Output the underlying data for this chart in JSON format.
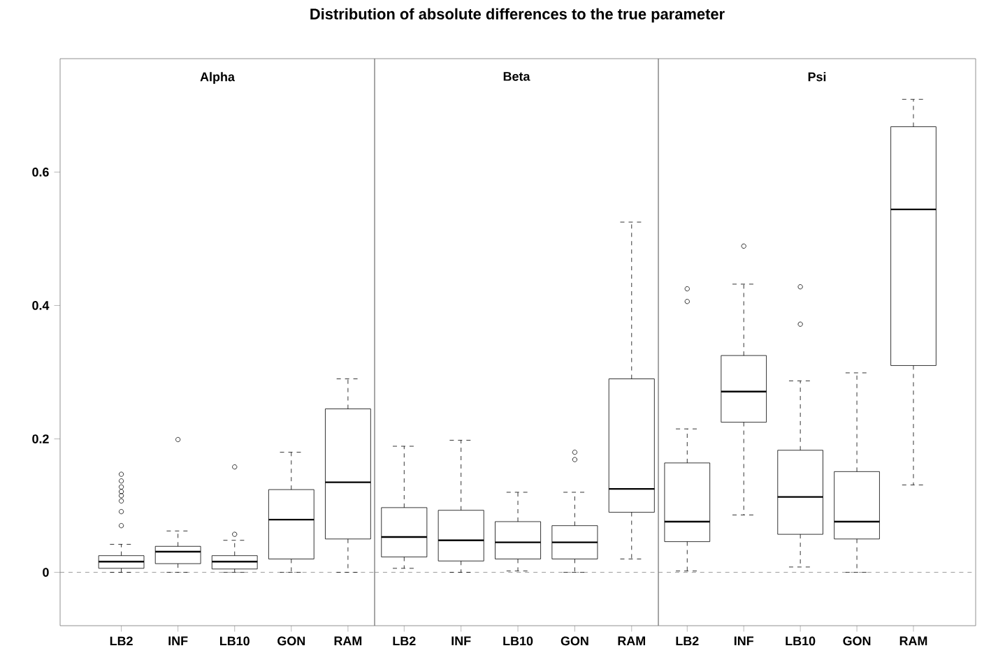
{
  "chart_data": [
    {
      "type": "box",
      "title": "Distribution of absolute differences to the true parameter",
      "subtitle": "Alpha",
      "categories": [
        "LB2",
        "INF",
        "LB10",
        "GON",
        "RAM"
      ],
      "color": "#000000",
      "marker": "circle",
      "ylim": [
        -0.08,
        0.77
      ],
      "yticks": [
        0,
        0.2,
        0.4,
        0.6
      ],
      "ref_lines": [
        {
          "axis": "y",
          "value": 0,
          "color": "#808080",
          "line_style": "dashed"
        }
      ],
      "boxes": [
        {
          "low": 0,
          "q1": 0.006,
          "median": 0.016,
          "q3": 0.025,
          "high": 0.042,
          "outliers": [
            0.147,
            0.137,
            0.128,
            0.121,
            0.115,
            0.107,
            0.091,
            0.07
          ]
        },
        {
          "low": 0,
          "q1": 0.013,
          "median": 0.031,
          "q3": 0.039,
          "high": 0.062,
          "outliers": [
            0.199
          ]
        },
        {
          "low": 0,
          "q1": 0.005,
          "median": 0.016,
          "q3": 0.025,
          "high": 0.048,
          "outliers": [
            0.057,
            0.158
          ]
        },
        {
          "low": 0,
          "q1": 0.02,
          "median": 0.079,
          "q3": 0.124,
          "high": 0.18
        },
        {
          "low": 0,
          "q1": 0.05,
          "median": 0.135,
          "q3": 0.245,
          "high": 0.29
        }
      ]
    },
    {
      "type": "box",
      "subtitle": "Beta",
      "categories": [
        "LB2",
        "INF",
        "LB10",
        "GON",
        "RAM"
      ],
      "color": "#000000",
      "marker": "circle",
      "ylim": [
        -0.08,
        0.77
      ],
      "tick_labels": "x",
      "ref_lines": [
        {
          "axis": "y",
          "value": 0,
          "color": "#808080",
          "line_style": "dashed"
        }
      ],
      "boxes": [
        {
          "low": 0.006,
          "q1": 0.023,
          "median": 0.053,
          "q3": 0.097,
          "high": 0.189
        },
        {
          "low": 0,
          "q1": 0.017,
          "median": 0.048,
          "q3": 0.093,
          "high": 0.198
        },
        {
          "low": 0.002,
          "q1": 0.02,
          "median": 0.045,
          "q3": 0.076,
          "high": 0.12
        },
        {
          "low": 0,
          "q1": 0.02,
          "median": 0.045,
          "q3": 0.07,
          "high": 0.12,
          "outliers": [
            0.18,
            0.169
          ]
        },
        {
          "low": 0.02,
          "q1": 0.09,
          "median": 0.125,
          "q3": 0.29,
          "high": 0.525
        }
      ]
    },
    {
      "type": "box",
      "subtitle": "Psi",
      "categories": [
        "LB2",
        "INF",
        "LB10",
        "GON",
        "RAM"
      ],
      "color": "#000000",
      "marker": "circle",
      "ylim": [
        -0.08,
        0.77
      ],
      "tick_labels": "x",
      "ref_lines": [
        {
          "axis": "y",
          "value": 0,
          "color": "#808080",
          "line_style": "dashed"
        }
      ],
      "boxes": [
        {
          "low": 0.002,
          "q1": 0.046,
          "median": 0.076,
          "q3": 0.164,
          "high": 0.215,
          "outliers": [
            0.425,
            0.406
          ]
        },
        {
          "low": 0.086,
          "q1": 0.225,
          "median": 0.271,
          "q3": 0.325,
          "high": 0.432,
          "outliers": [
            0.489
          ]
        },
        {
          "low": 0.008,
          "q1": 0.057,
          "median": 0.113,
          "q3": 0.183,
          "high": 0.287,
          "outliers": [
            0.428,
            0.372
          ]
        },
        {
          "low": 0,
          "q1": 0.05,
          "median": 0.076,
          "q3": 0.151,
          "high": 0.299
        },
        {
          "low": 0.131,
          "q1": 0.31,
          "median": 0.544,
          "q3": 0.668,
          "high": 0.709
        }
      ]
    }
  ]
}
